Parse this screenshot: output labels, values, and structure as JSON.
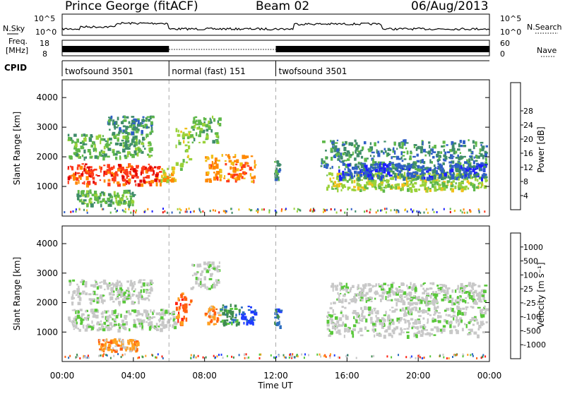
{
  "header": {
    "title": "Prince George (fitACF)",
    "beam": "Beam 02",
    "date": "06/Aug/2013"
  },
  "top_panel": {
    "nsky_label": "N.Sky",
    "nsearch_label": "N.Search",
    "left_ticks": [
      "10^5",
      "10^0"
    ],
    "right_ticks": [
      "10^5",
      "10^0"
    ],
    "freq_label_1": "Freq.",
    "freq_label_2": "[MHz]",
    "freq_ticks": [
      "18",
      "8"
    ],
    "nave_ticks": [
      "60",
      "0"
    ],
    "nave_label": "Nave",
    "cpid_label": "CPID",
    "cpid_segments": [
      {
        "label": "twofsound 3501",
        "start": 0,
        "end": 6
      },
      {
        "label": "normal (fast) 151",
        "start": 6,
        "end": 12
      },
      {
        "label": "twofsound 3501",
        "start": 12,
        "end": 24
      }
    ]
  },
  "chart_data": [
    {
      "type": "heatmap",
      "title": "Power",
      "ylabel": "Slant Range [km]",
      "xlabel": "Time UT",
      "xlim": [
        0,
        24
      ],
      "ylim": [
        0,
        4600
      ],
      "yticks": [
        "1000",
        "2000",
        "3000",
        "4000"
      ],
      "colorbar": {
        "label": "Power [dB]",
        "ticks": [
          "4",
          "8",
          "12",
          "16",
          "20",
          "24",
          "28"
        ],
        "colors": [
          "#1e1eff",
          "#2f5fc6",
          "#3f8c6a",
          "#5fb84a",
          "#9ad23a",
          "#f0c01a",
          "#ff8800",
          "#ff3a1a",
          "#e00000"
        ]
      },
      "bands": [
        {
          "t0": 0.3,
          "t1": 5.5,
          "r0": 1100,
          "r1": 1800,
          "level": 7
        },
        {
          "t0": 5.5,
          "t1": 6.3,
          "r0": 1200,
          "r1": 1700,
          "level": 5
        },
        {
          "t0": 6.3,
          "t1": 7.2,
          "r0": 1500,
          "r1": 3000,
          "level": 4
        },
        {
          "t0": 7.2,
          "t1": 8.8,
          "r0": 2500,
          "r1": 3400,
          "level": 3
        },
        {
          "t0": 8.0,
          "t1": 10.8,
          "r0": 1200,
          "r1": 2100,
          "level": 6
        },
        {
          "t0": 0.3,
          "t1": 5.0,
          "r0": 2000,
          "r1": 2800,
          "level": 3
        },
        {
          "t0": 0.8,
          "t1": 4.0,
          "r0": 400,
          "r1": 900,
          "level": 3
        },
        {
          "t0": 2.5,
          "t1": 5.0,
          "r0": 2800,
          "r1": 3400,
          "level": 2
        },
        {
          "t0": 11.9,
          "t1": 12.2,
          "r0": 1200,
          "r1": 1900,
          "level": 2
        },
        {
          "t0": 14.8,
          "t1": 23.8,
          "r0": 900,
          "r1": 1500,
          "level": 4
        },
        {
          "t0": 14.5,
          "t1": 23.8,
          "r0": 1600,
          "r1": 2600,
          "level": 2
        },
        {
          "t0": 15.5,
          "t1": 23.8,
          "r0": 1300,
          "r1": 1800,
          "level": 1
        }
      ]
    },
    {
      "type": "heatmap",
      "title": "Velocity",
      "ylabel": "Slant Range [km]",
      "xlabel": "Time UT",
      "xlim": [
        0,
        24
      ],
      "ylim": [
        0,
        4600
      ],
      "yticks": [
        "1000",
        "2000",
        "3000",
        "4000"
      ],
      "xticks": [
        "00:00",
        "04:00",
        "08:00",
        "12:00",
        "16:00",
        "20:00",
        "00:00"
      ],
      "colorbar": {
        "label": "Velocity [m s⁻¹]",
        "ticks": [
          "1000",
          "500",
          "100",
          "25",
          "-25",
          "-100",
          "-500",
          "-1000"
        ],
        "colors": [
          "#1e3cff",
          "#2d6ec0",
          "#3f8c50",
          "#59c83a",
          "#c8c8c8",
          "#c8c8c8",
          "#ffa020",
          "#ff6010",
          "#ff2010"
        ]
      },
      "bands": [
        {
          "t0": 0.3,
          "t1": 5.5,
          "r0": 1100,
          "r1": 1800,
          "level": 4
        },
        {
          "t0": 5.5,
          "t1": 6.3,
          "r0": 1200,
          "r1": 1800,
          "level": 4
        },
        {
          "t0": 6.3,
          "t1": 7.2,
          "r0": 1300,
          "r1": 2400,
          "level": 7
        },
        {
          "t0": 8.0,
          "t1": 8.8,
          "r0": 1300,
          "r1": 1900,
          "level": 6
        },
        {
          "t0": 8.8,
          "t1": 10.0,
          "r0": 1300,
          "r1": 2000,
          "level": 2
        },
        {
          "t0": 10.0,
          "t1": 10.8,
          "r0": 1300,
          "r1": 1900,
          "level": 0
        },
        {
          "t0": 0.3,
          "t1": 5.0,
          "r0": 2000,
          "r1": 2800,
          "level": 4
        },
        {
          "t0": 2.0,
          "t1": 4.2,
          "r0": 400,
          "r1": 800,
          "level": 6
        },
        {
          "t0": 7.2,
          "t1": 8.8,
          "r0": 2500,
          "r1": 3400,
          "level": 4
        },
        {
          "t0": 11.9,
          "t1": 12.2,
          "r0": 1200,
          "r1": 1900,
          "level": 1
        },
        {
          "t0": 14.8,
          "t1": 23.8,
          "r0": 900,
          "r1": 1900,
          "level": 4
        },
        {
          "t0": 15.0,
          "t1": 23.8,
          "r0": 2000,
          "r1": 2700,
          "level": 4
        }
      ]
    }
  ]
}
